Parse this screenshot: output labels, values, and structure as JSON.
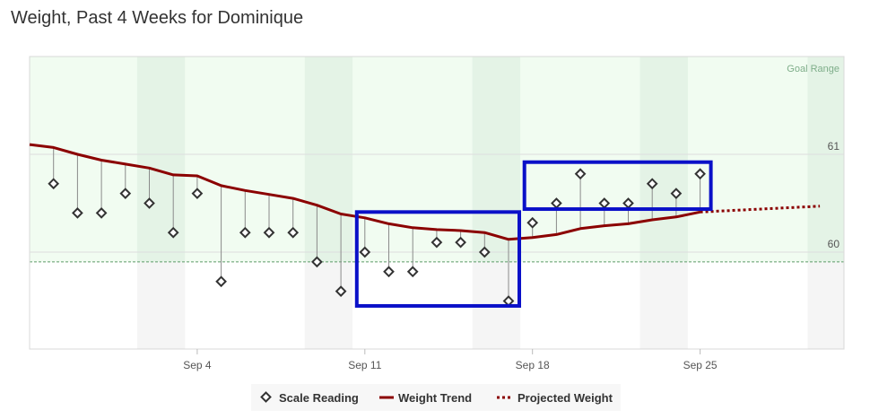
{
  "title": "Weight, Past 4 Weeks for Dominique",
  "chart_data": {
    "type": "line",
    "title": "Weight, Past 4 Weeks for Dominique",
    "x_unit": "day",
    "x_tick_labels": [
      "Sep 4",
      "Sep 11",
      "Sep 18",
      "Sep 25"
    ],
    "y_tick_labels": [
      "60",
      "61"
    ],
    "ylim": [
      59.0,
      62.0
    ],
    "goal_range_label": "Goal Range",
    "goal_range_min": 59.9,
    "colors": {
      "trend": "#8b0000",
      "projected": "#8b0000",
      "scale": "#333333",
      "goal_fill": "#eefcef",
      "highlight_box": "#0a10c8"
    },
    "series": [
      {
        "name": "Scale Reading",
        "style": "diamond",
        "points": [
          {
            "x": "Aug 29",
            "y": 60.7
          },
          {
            "x": "Aug 30",
            "y": 60.4
          },
          {
            "x": "Aug 31",
            "y": 60.4
          },
          {
            "x": "Sep 1",
            "y": 60.6
          },
          {
            "x": "Sep 2",
            "y": 60.5
          },
          {
            "x": "Sep 3",
            "y": 60.2
          },
          {
            "x": "Sep 4",
            "y": 60.6
          },
          {
            "x": "Sep 5",
            "y": 59.7
          },
          {
            "x": "Sep 6",
            "y": 60.2
          },
          {
            "x": "Sep 7",
            "y": 60.2
          },
          {
            "x": "Sep 8",
            "y": 60.2
          },
          {
            "x": "Sep 9",
            "y": 59.9
          },
          {
            "x": "Sep 10",
            "y": 59.6
          },
          {
            "x": "Sep 11",
            "y": 60.0
          },
          {
            "x": "Sep 12",
            "y": 59.8
          },
          {
            "x": "Sep 13",
            "y": 59.8
          },
          {
            "x": "Sep 14",
            "y": 60.1
          },
          {
            "x": "Sep 15",
            "y": 60.1
          },
          {
            "x": "Sep 16",
            "y": 60.0
          },
          {
            "x": "Sep 17",
            "y": 59.5
          },
          {
            "x": "Sep 18",
            "y": 60.3
          },
          {
            "x": "Sep 19",
            "y": 60.5
          },
          {
            "x": "Sep 20",
            "y": 60.8
          },
          {
            "x": "Sep 21",
            "y": 60.5
          },
          {
            "x": "Sep 22",
            "y": 60.5
          },
          {
            "x": "Sep 23",
            "y": 60.7
          },
          {
            "x": "Sep 24",
            "y": 60.6
          },
          {
            "x": "Sep 25",
            "y": 60.8
          }
        ]
      },
      {
        "name": "Weight Trend",
        "style": "solid",
        "points": [
          {
            "x": "Aug 28",
            "y": 61.1
          },
          {
            "x": "Aug 29",
            "y": 61.07
          },
          {
            "x": "Aug 30",
            "y": 61.0
          },
          {
            "x": "Aug 31",
            "y": 60.94
          },
          {
            "x": "Sep 1",
            "y": 60.9
          },
          {
            "x": "Sep 2",
            "y": 60.86
          },
          {
            "x": "Sep 3",
            "y": 60.79
          },
          {
            "x": "Sep 4",
            "y": 60.78
          },
          {
            "x": "Sep 5",
            "y": 60.68
          },
          {
            "x": "Sep 6",
            "y": 60.63
          },
          {
            "x": "Sep 7",
            "y": 60.59
          },
          {
            "x": "Sep 8",
            "y": 60.55
          },
          {
            "x": "Sep 9",
            "y": 60.48
          },
          {
            "x": "Sep 10",
            "y": 60.39
          },
          {
            "x": "Sep 11",
            "y": 60.35
          },
          {
            "x": "Sep 12",
            "y": 60.29
          },
          {
            "x": "Sep 13",
            "y": 60.25
          },
          {
            "x": "Sep 14",
            "y": 60.23
          },
          {
            "x": "Sep 15",
            "y": 60.22
          },
          {
            "x": "Sep 16",
            "y": 60.2
          },
          {
            "x": "Sep 17",
            "y": 60.13
          },
          {
            "x": "Sep 18",
            "y": 60.15
          },
          {
            "x": "Sep 19",
            "y": 60.18
          },
          {
            "x": "Sep 20",
            "y": 60.24
          },
          {
            "x": "Sep 21",
            "y": 60.27
          },
          {
            "x": "Sep 22",
            "y": 60.29
          },
          {
            "x": "Sep 23",
            "y": 60.33
          },
          {
            "x": "Sep 24",
            "y": 60.36
          },
          {
            "x": "Sep 25",
            "y": 60.41
          }
        ]
      },
      {
        "name": "Projected Weight",
        "style": "dotted",
        "points": [
          {
            "x": "Sep 25",
            "y": 60.41
          },
          {
            "x": "Sep 30",
            "y": 60.47
          }
        ]
      }
    ],
    "highlight_boxes": [
      {
        "x_from": "Sep 11",
        "x_to": "Sep 17",
        "y_from": 59.45,
        "y_to": 60.41
      },
      {
        "x_from": "Sep 18",
        "x_to": "Sep 25",
        "y_from": 60.44,
        "y_to": 60.92
      }
    ],
    "legend": {
      "placement": "bottom-center",
      "items": [
        {
          "label": "Scale Reading",
          "symbol": "diamond"
        },
        {
          "label": "Weight Trend",
          "symbol": "solid-line"
        },
        {
          "label": "Projected Weight",
          "symbol": "dotted-line"
        }
      ]
    }
  }
}
